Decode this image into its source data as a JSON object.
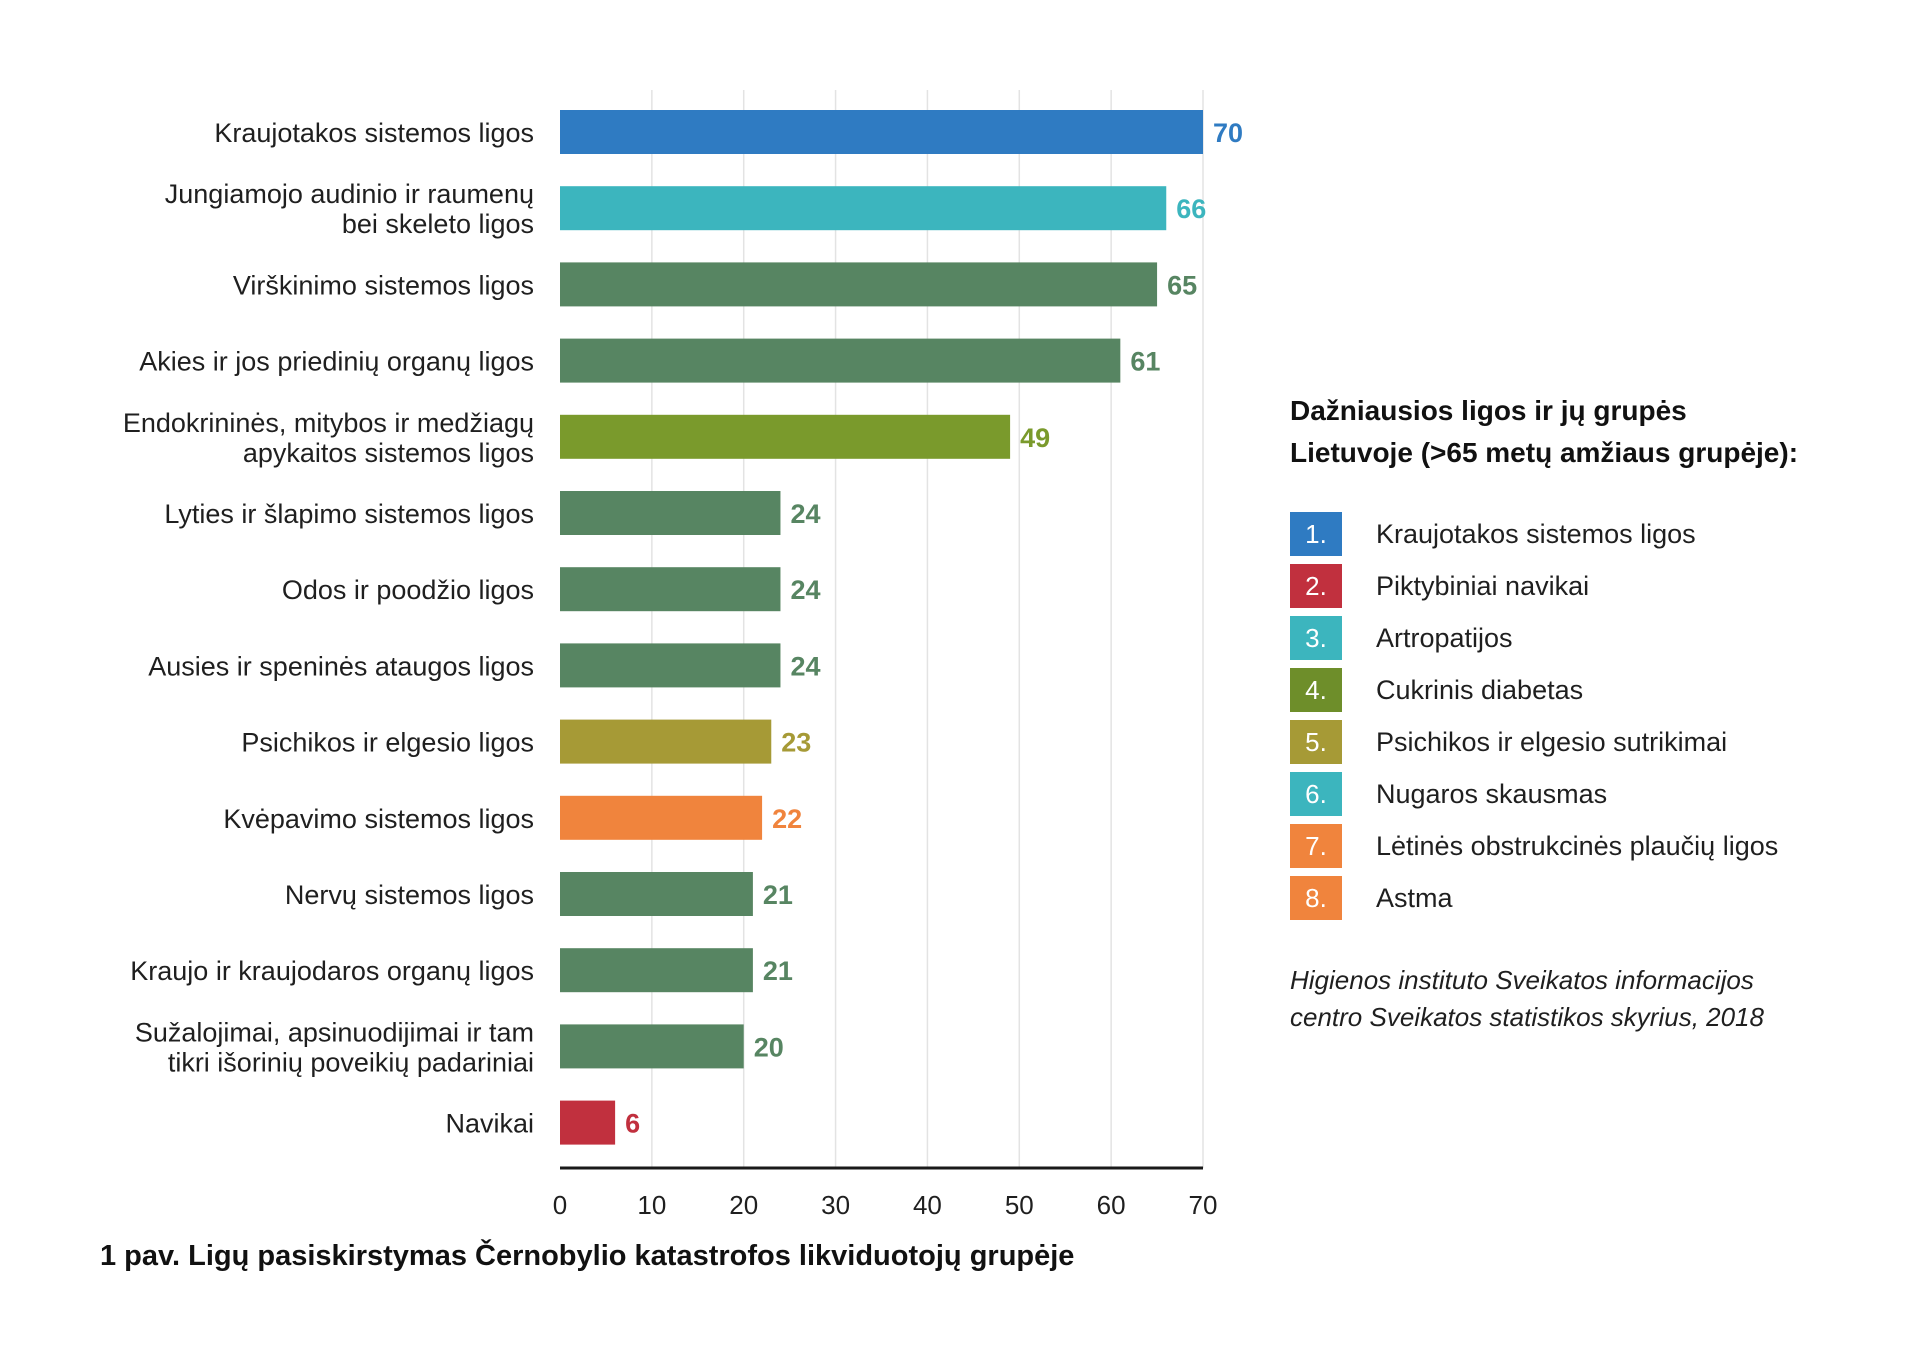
{
  "chart_data": {
    "type": "bar",
    "orientation": "horizontal",
    "title": "1 pav. Ligų pasiskirstymas Černobylio katastrofos likviduotojų grupėje",
    "xlim": [
      0,
      70
    ],
    "x_ticks": [
      "0",
      "10",
      "20",
      "30",
      "40",
      "50",
      "60",
      "70"
    ],
    "grid": true,
    "categories": [
      [
        "Kraujotakos sistemos ligos"
      ],
      [
        "Jungiamojo audinio ir raumenų",
        "bei skeleto ligos"
      ],
      [
        "Virškinimo sistemos ligos"
      ],
      [
        "Akies ir jos priedinių organų ligos"
      ],
      [
        "Endokrininės, mitybos ir medžiagų",
        "apykaitos sistemos ligos"
      ],
      [
        "Lyties ir šlapimo sistemos ligos"
      ],
      [
        "Odos ir poodžio ligos"
      ],
      [
        "Ausies ir speninės ataugos ligos"
      ],
      [
        "Psichikos ir elgesio ligos"
      ],
      [
        "Kvėpavimo sistemos ligos"
      ],
      [
        "Nervų sistemos ligos"
      ],
      [
        "Kraujo ir kraujodaros organų ligos"
      ],
      [
        "Sužalojimai, apsinuodijimai ir tam",
        "tikri išorinių poveikių padariniai"
      ],
      [
        "Navikai"
      ]
    ],
    "values": [
      70,
      66,
      65,
      61,
      49,
      24,
      24,
      24,
      23,
      22,
      21,
      21,
      20,
      6
    ],
    "value_labels": [
      "70",
      "66",
      "65",
      "61",
      "49",
      "24",
      "24",
      "24",
      "23",
      "22",
      "21",
      "21",
      "20",
      "6"
    ],
    "colors": [
      "#2f7bc2",
      "#3cb5be",
      "#578562",
      "#578562",
      "#7a9a2c",
      "#578562",
      "#578562",
      "#578562",
      "#a69a36",
      "#f0843d",
      "#578562",
      "#578562",
      "#578562",
      "#c1303e"
    ]
  },
  "legend": {
    "title_line1": "Dažniausios ligos ir jų grupės",
    "title_line2": "Lietuvoje (>65 metų amžiaus grupėje):",
    "items": [
      {
        "num": "1.",
        "label": "Kraujotakos sistemos ligos",
        "color": "#2f7bc2"
      },
      {
        "num": "2.",
        "label": "Piktybiniai navikai",
        "color": "#c1303e"
      },
      {
        "num": "3.",
        "label": "Artropatijos",
        "color": "#3cb5be"
      },
      {
        "num": "4.",
        "label": "Cukrinis diabetas",
        "color": "#6e8e2a"
      },
      {
        "num": "5.",
        "label": "Psichikos ir elgesio sutrikimai",
        "color": "#a69a36"
      },
      {
        "num": "6.",
        "label": "Nugaros skausmas",
        "color": "#3cb5be"
      },
      {
        "num": "7.",
        "label": "Lėtinės obstrukcinės plaučių ligos",
        "color": "#f0843d"
      },
      {
        "num": "8.",
        "label": "Astma",
        "color": "#f0843d"
      }
    ]
  },
  "source": {
    "line1": "Higienos instituto Sveikatos informacijos",
    "line2": "centro Sveikatos statistikos skyrius, 2018"
  }
}
